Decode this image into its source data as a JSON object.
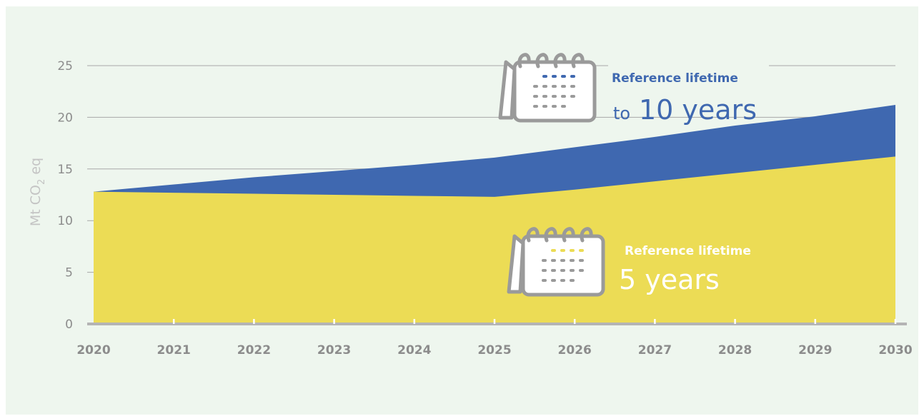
{
  "chart_data": {
    "type": "area",
    "ylabel_main": "Mt CO",
    "ylabel_sub": "2",
    "ylabel_suffix": " eq",
    "x": [
      "2020",
      "2021",
      "2022",
      "2023",
      "2024",
      "2025",
      "2026",
      "2027",
      "2028",
      "2029",
      "2030"
    ],
    "ylim": [
      0,
      25
    ],
    "yticks": [
      0,
      5,
      10,
      15,
      20,
      25
    ],
    "grid": true,
    "series": [
      {
        "id": "ten",
        "values": [
          12.8,
          13.5,
          14.2,
          14.8,
          15.4,
          16.1,
          17.1,
          18.1,
          19.2,
          20.1,
          21.2
        ],
        "color": "#3f68b0"
      },
      {
        "id": "five",
        "values": [
          12.8,
          12.7,
          12.6,
          12.5,
          12.4,
          12.3,
          13.0,
          13.8,
          14.6,
          15.4,
          16.2
        ],
        "color": "#ecdc55"
      }
    ],
    "annotations": {
      "ten": {
        "line1": "Reference lifetime",
        "prefix": "to",
        "big": "10 years",
        "color": "#3f68b0"
      },
      "five": {
        "line1": "Reference lifetime",
        "big": "5 years",
        "color": "#ffffff"
      }
    }
  },
  "colors": {
    "background": "#eef6ee",
    "grid": "#a8a8a8",
    "tick_text": "#8c8c8c",
    "calendar": "#9a9a9a",
    "dot_blue": "#3f68b0",
    "dot_yellow": "#ecdc55"
  }
}
